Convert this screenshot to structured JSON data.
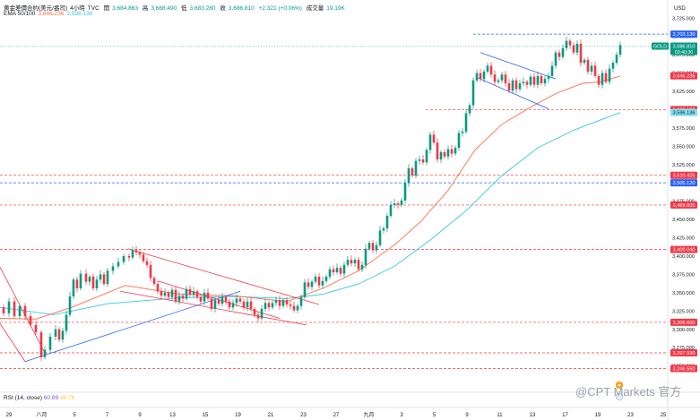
{
  "header": {
    "title": "黄金差價合約(美元/盎司)",
    "interval": "4小時",
    "source": "TVC",
    "o_label": "開",
    "o": "3,684.863",
    "h_label": "高",
    "h": "3,688.490",
    "l_label": "低",
    "l": "3,683.280",
    "c_label": "收",
    "c": "3,686.810",
    "change": "+2.321 (+0.06%)",
    "volume_label": "成交量",
    "volume": "19.19K",
    "ema_label": "EMA 50/100",
    "ema50": "3,646.236",
    "ema100": "3,596.136"
  },
  "currency": "USD",
  "rsi": {
    "label": "RSI (14, close)",
    "v1": "60.89",
    "v2": "49.78"
  },
  "watermark": "@CPT Markets 官方",
  "colors": {
    "up": "#089981",
    "down": "#f23645",
    "ema50": "#ff6d4a",
    "ema100": "#3bc5e6",
    "trendline": "#f23645",
    "uptrend": "#2962ff",
    "level": "#f23645",
    "hline": "#2962ff"
  },
  "chart_data": {
    "type": "candlestick",
    "symbol": "GOLD",
    "y_axis": {
      "ylim": [
        3230,
        3740
      ],
      "ticks": [
        "3,725.000",
        "3,700.000",
        "3,675.000",
        "3,650.000",
        "3,625.000",
        "3,600.000",
        "3,575.000",
        "3,550.000",
        "3,525.000",
        "3,500.000",
        "3,475.000",
        "3,450.000",
        "3,425.000",
        "3,400.000",
        "3,375.000",
        "3,350.000",
        "3,325.000",
        "3,300.000",
        "3,275.000",
        "3,250.000"
      ]
    },
    "x_axis": {
      "labels": [
        "29",
        "八月",
        "5",
        "7",
        "9",
        "13",
        "15",
        "19",
        "21",
        "23",
        "27",
        "九月",
        "3",
        "5",
        "9",
        "11",
        "13",
        "17",
        "19",
        "23",
        "25"
      ]
    },
    "last_price": {
      "symbol": "GOLD",
      "value": "3,686.810",
      "countdown": "03:40:30"
    },
    "price_tags": [
      {
        "value": "3,703.130",
        "kind": "hline"
      },
      {
        "value": "3,646.236",
        "kind": "ema50"
      },
      {
        "value": "3,600.180",
        "kind": "level"
      },
      {
        "value": "3,596.136",
        "kind": "ema100"
      },
      {
        "value": "3,510.425",
        "kind": "level"
      },
      {
        "value": "3,500.120",
        "kind": "hline"
      },
      {
        "value": "3,469.805",
        "kind": "level"
      },
      {
        "value": "3,409.040",
        "kind": "level"
      },
      {
        "value": "3,309.600",
        "kind": "level"
      },
      {
        "value": "3,267.930",
        "kind": "level"
      },
      {
        "value": "3,246.550",
        "kind": "level"
      }
    ],
    "levels": [
      3703.13,
      3600.18,
      3510.425,
      3500.12,
      3469.805,
      3409.04,
      3309.6,
      3267.93,
      3246.55
    ],
    "price_path": [
      [
        0,
        3330
      ],
      [
        4,
        3322
      ],
      [
        10,
        3338
      ],
      [
        16,
        3318
      ],
      [
        22,
        3332
      ],
      [
        28,
        3318
      ],
      [
        34,
        3306
      ],
      [
        40,
        3296
      ],
      [
        46,
        3262
      ],
      [
        50,
        3272
      ],
      [
        56,
        3290
      ],
      [
        62,
        3300
      ],
      [
        66,
        3286
      ],
      [
        70,
        3298
      ],
      [
        74,
        3320
      ],
      [
        78,
        3345
      ],
      [
        82,
        3368
      ],
      [
        86,
        3356
      ],
      [
        90,
        3376
      ],
      [
        96,
        3365
      ],
      [
        100,
        3372
      ],
      [
        104,
        3356
      ],
      [
        108,
        3368
      ],
      [
        112,
        3375
      ],
      [
        116,
        3362
      ],
      [
        120,
        3380
      ],
      [
        126,
        3386
      ],
      [
        132,
        3392
      ],
      [
        138,
        3400
      ],
      [
        144,
        3398
      ],
      [
        148,
        3408
      ],
      [
        152,
        3405
      ],
      [
        156,
        3402
      ],
      [
        160,
        3393
      ],
      [
        164,
        3388
      ],
      [
        168,
        3370
      ],
      [
        172,
        3362
      ],
      [
        176,
        3352
      ],
      [
        180,
        3346
      ],
      [
        184,
        3350
      ],
      [
        188,
        3344
      ],
      [
        192,
        3354
      ],
      [
        196,
        3338
      ],
      [
        200,
        3346
      ],
      [
        204,
        3342
      ],
      [
        208,
        3355
      ],
      [
        212,
        3348
      ],
      [
        216,
        3352
      ],
      [
        220,
        3344
      ],
      [
        224,
        3338
      ],
      [
        228,
        3350
      ],
      [
        232,
        3342
      ],
      [
        236,
        3328
      ],
      [
        240,
        3340
      ],
      [
        244,
        3335
      ],
      [
        248,
        3344
      ],
      [
        252,
        3338
      ],
      [
        256,
        3330
      ],
      [
        260,
        3336
      ],
      [
        264,
        3342
      ],
      [
        268,
        3338
      ],
      [
        272,
        3330
      ],
      [
        276,
        3338
      ],
      [
        280,
        3328
      ],
      [
        284,
        3320
      ],
      [
        288,
        3315
      ],
      [
        292,
        3328
      ],
      [
        296,
        3336
      ],
      [
        300,
        3330
      ],
      [
        304,
        3336
      ],
      [
        308,
        3340
      ],
      [
        312,
        3332
      ],
      [
        316,
        3340
      ],
      [
        320,
        3334
      ],
      [
        324,
        3332
      ],
      [
        328,
        3326
      ],
      [
        332,
        3332
      ],
      [
        336,
        3344
      ],
      [
        340,
        3364
      ],
      [
        344,
        3358
      ],
      [
        348,
        3365
      ],
      [
        352,
        3372
      ],
      [
        356,
        3360
      ],
      [
        360,
        3366
      ],
      [
        364,
        3372
      ],
      [
        368,
        3382
      ],
      [
        372,
        3378
      ],
      [
        376,
        3384
      ],
      [
        380,
        3376
      ],
      [
        384,
        3388
      ],
      [
        388,
        3395
      ],
      [
        392,
        3390
      ],
      [
        396,
        3395
      ],
      [
        400,
        3382
      ],
      [
        404,
        3388
      ],
      [
        408,
        3410
      ],
      [
        412,
        3418
      ],
      [
        416,
        3408
      ],
      [
        420,
        3415
      ],
      [
        424,
        3435
      ],
      [
        428,
        3438
      ],
      [
        432,
        3455
      ],
      [
        436,
        3470
      ],
      [
        440,
        3472
      ],
      [
        444,
        3470
      ],
      [
        448,
        3476
      ],
      [
        452,
        3500
      ],
      [
        456,
        3520
      ],
      [
        460,
        3510
      ],
      [
        464,
        3530
      ],
      [
        468,
        3532
      ],
      [
        472,
        3528
      ],
      [
        476,
        3545
      ],
      [
        480,
        3566
      ],
      [
        484,
        3555
      ],
      [
        488,
        3532
      ],
      [
        492,
        3542
      ],
      [
        496,
        3536
      ],
      [
        500,
        3546
      ],
      [
        504,
        3540
      ],
      [
        508,
        3548
      ],
      [
        512,
        3568
      ],
      [
        516,
        3570
      ],
      [
        520,
        3595
      ],
      [
        524,
        3606
      ],
      [
        528,
        3640
      ],
      [
        532,
        3650
      ],
      [
        536,
        3642
      ],
      [
        540,
        3652
      ],
      [
        544,
        3660
      ],
      [
        548,
        3648
      ],
      [
        552,
        3638
      ],
      [
        556,
        3640
      ],
      [
        560,
        3648
      ],
      [
        564,
        3636
      ],
      [
        568,
        3626
      ],
      [
        572,
        3640
      ],
      [
        576,
        3628
      ],
      [
        580,
        3636
      ],
      [
        584,
        3638
      ],
      [
        588,
        3634
      ],
      [
        592,
        3645
      ],
      [
        596,
        3634
      ],
      [
        600,
        3646
      ],
      [
        604,
        3636
      ],
      [
        608,
        3642
      ],
      [
        612,
        3646
      ],
      [
        616,
        3660
      ],
      [
        620,
        3678
      ],
      [
        624,
        3672
      ],
      [
        628,
        3684
      ],
      [
        632,
        3694
      ],
      [
        636,
        3688
      ],
      [
        640,
        3678
      ],
      [
        644,
        3690
      ],
      [
        648,
        3664
      ],
      [
        652,
        3668
      ],
      [
        656,
        3652
      ],
      [
        660,
        3660
      ],
      [
        664,
        3646
      ],
      [
        668,
        3634
      ],
      [
        672,
        3650
      ],
      [
        676,
        3638
      ],
      [
        680,
        3656
      ],
      [
        684,
        3664
      ],
      [
        688,
        3675
      ],
      [
        692,
        3688
      ]
    ],
    "ema50": [
      [
        0,
        3315
      ],
      [
        40,
        3314
      ],
      [
        80,
        3330
      ],
      [
        140,
        3360
      ],
      [
        200,
        3348
      ],
      [
        260,
        3346
      ],
      [
        320,
        3338
      ],
      [
        360,
        3356
      ],
      [
        400,
        3380
      ],
      [
        440,
        3415
      ],
      [
        470,
        3448
      ],
      [
        500,
        3490
      ],
      [
        530,
        3545
      ],
      [
        560,
        3580
      ],
      [
        590,
        3602
      ],
      [
        620,
        3622
      ],
      [
        650,
        3636
      ],
      [
        670,
        3638
      ],
      [
        692,
        3646
      ]
    ],
    "ema100": [
      [
        0,
        3330
      ],
      [
        60,
        3320
      ],
      [
        120,
        3335
      ],
      [
        200,
        3343
      ],
      [
        260,
        3345
      ],
      [
        320,
        3342
      ],
      [
        360,
        3348
      ],
      [
        400,
        3362
      ],
      [
        440,
        3386
      ],
      [
        480,
        3422
      ],
      [
        520,
        3462
      ],
      [
        560,
        3510
      ],
      [
        600,
        3548
      ],
      [
        640,
        3572
      ],
      [
        670,
        3586
      ],
      [
        692,
        3596
      ]
    ],
    "trendlines": [
      {
        "color": "#f23645",
        "points": [
          [
            0,
            3385
          ],
          [
            50,
            3268
          ]
        ]
      },
      {
        "color": "#f23645",
        "points": [
          [
            0,
            3308
          ],
          [
            28,
            3256
          ]
        ]
      },
      {
        "color": "#f23645",
        "points": [
          [
            143,
            3410
          ],
          [
            356,
            3334
          ]
        ]
      },
      {
        "color": "#f23645",
        "points": [
          [
            176,
            3366
          ],
          [
            312,
            3315
          ]
        ]
      },
      {
        "color": "#f23645",
        "points": [
          [
            134,
            3352
          ],
          [
            342,
            3306
          ]
        ]
      },
      {
        "color": "#2962ff",
        "points": [
          [
            28,
            3256
          ],
          [
            268,
            3352
          ]
        ]
      },
      {
        "color": "#2962ff",
        "points": [
          [
            536,
            3678
          ],
          [
            620,
            3642
          ]
        ]
      },
      {
        "color": "#2962ff",
        "points": [
          [
            532,
            3644
          ],
          [
            612,
            3601
          ]
        ]
      }
    ]
  }
}
